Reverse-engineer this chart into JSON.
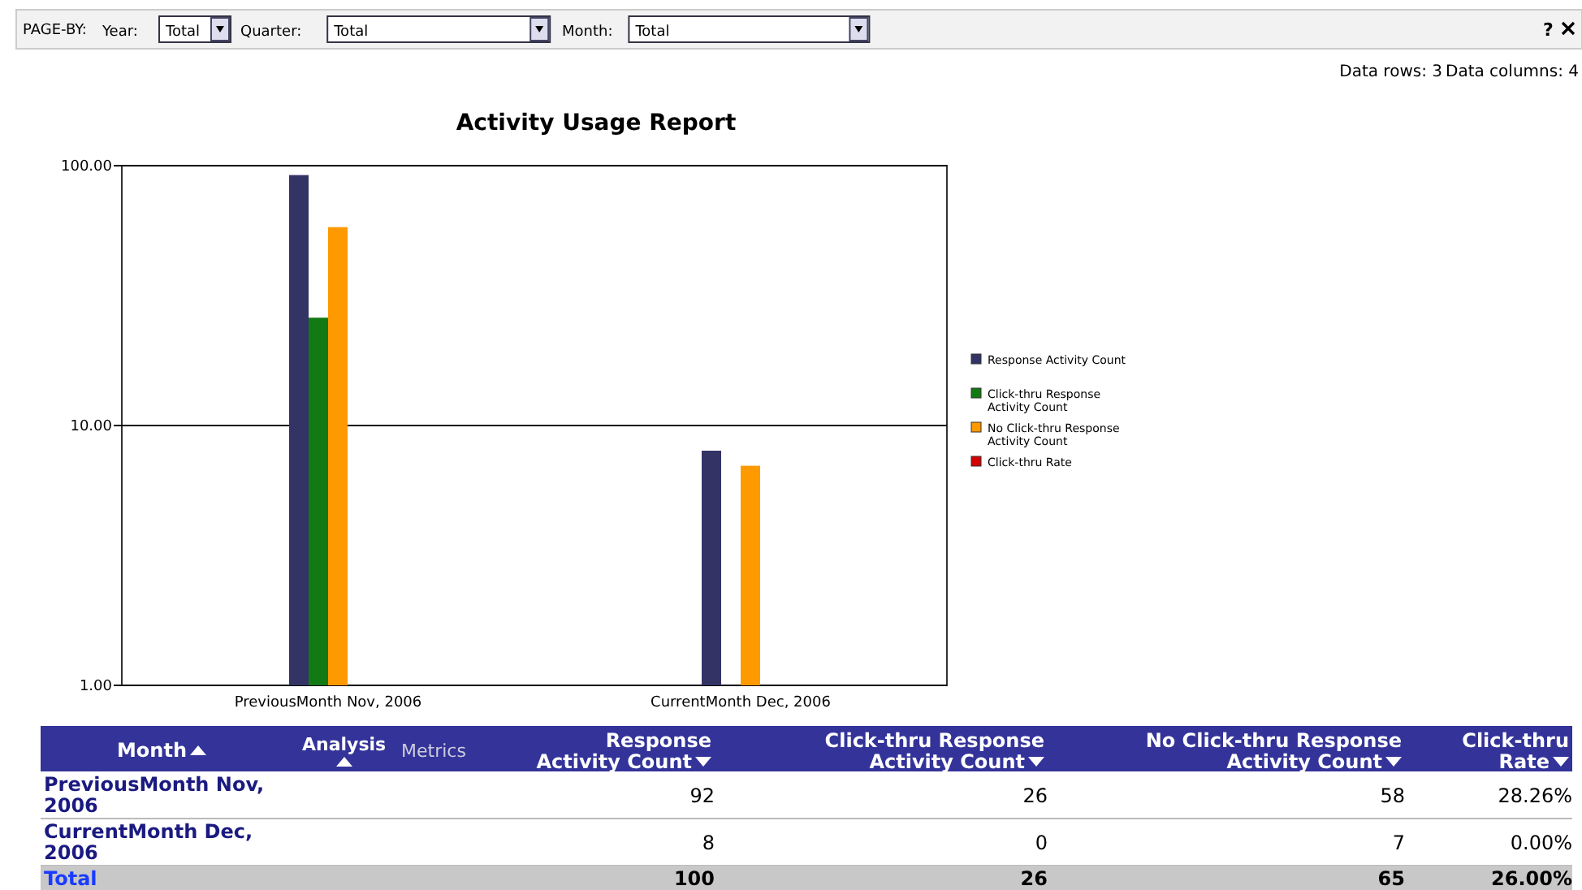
{
  "chart_data": {
    "type": "bar",
    "title": "Activity Usage Report",
    "xlabel": "Month",
    "log": "y",
    "grid": "y",
    "legend": "right",
    "categories": [
      "PreviousMonth Nov, 2006",
      "CurrentMonth Dec, 2006"
    ],
    "ylim": [
      1,
      100
    ],
    "yticks": [
      {
        "value": 1,
        "label": "1.00"
      },
      {
        "value": 10,
        "label": "10.00"
      },
      {
        "value": 100,
        "label": "100.00"
      }
    ],
    "series": [
      {
        "name": "Response Activity Count",
        "color": "#333366",
        "values": [
          92,
          8
        ]
      },
      {
        "name": "Click-thru Response Activity Count",
        "color": "#127a12",
        "values": [
          26,
          null
        ]
      },
      {
        "name": "No Click-thru Response Activity Count",
        "color": "#ff9900",
        "values": [
          58,
          7
        ]
      },
      {
        "name": "Click-thru Rate",
        "color": "#d40000",
        "values": [
          null,
          null
        ]
      }
    ],
    "annotations": [
      "PAGE-BY:",
      "Year:",
      "Total",
      "Quarter:",
      "Total",
      "Month:",
      "Total",
      "Data rows: 3",
      "Data columns: 4",
      "?",
      "Analysis",
      "Metrics",
      "Total",
      "100",
      "26",
      "65",
      "26.00%",
      "92",
      "26",
      "58",
      "28.26%",
      "8",
      "0",
      "7",
      "0.00%"
    ]
  }
}
